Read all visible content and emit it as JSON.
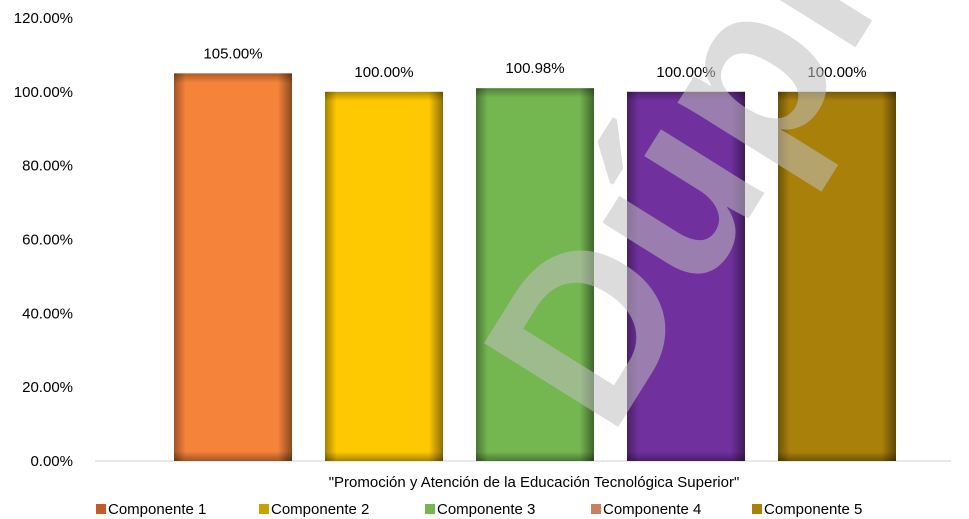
{
  "chart_data": {
    "type": "bar",
    "title": "",
    "categories": [
      "\"Promoción y Atención de la Educación Tecnológica Superior\""
    ],
    "series": [
      {
        "name": "Componente 1",
        "values": [
          105.0
        ],
        "label": "105.00%",
        "color": "#f6833a"
      },
      {
        "name": "Componente 2",
        "values": [
          100.0
        ],
        "label": "100.00%",
        "color": "#ffc900"
      },
      {
        "name": "Componente 3",
        "values": [
          100.98
        ],
        "label": "100.98%",
        "color": "#74b650"
      },
      {
        "name": "Componente 4",
        "values": [
          100.0
        ],
        "label": "100.00%",
        "color": "#70309e"
      },
      {
        "name": "Componente 5",
        "values": [
          100.0
        ],
        "label": "100.00%",
        "color": "#a9800a"
      }
    ],
    "y_ticks": [
      "0.00%",
      "20.00%",
      "40.00%",
      "60.00%",
      "80.00%",
      "100.00%",
      "120.00%"
    ],
    "ylim": [
      0,
      120
    ],
    "grid": false,
    "legend_position": "bottom",
    "legend_marker_colors": [
      "#c25b29",
      "#c9a000",
      "#74b650",
      "#c88060",
      "#a9800a"
    ]
  },
  "watermark": {
    "text": "Dúplic",
    "color": "#bfbfbf"
  }
}
